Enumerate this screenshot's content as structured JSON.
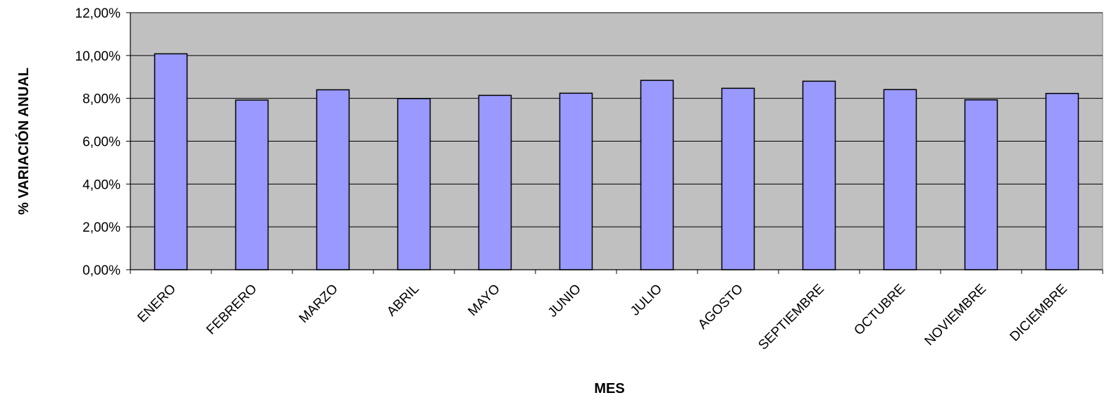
{
  "chart_data": {
    "type": "bar",
    "title": "",
    "xlabel": "MES",
    "ylabel": "% VARIACIÓN ANUAL",
    "categories": [
      "ENERO",
      "FEBRERO",
      "MARZO",
      "ABRIL",
      "MAYO",
      "JUNIO",
      "JULIO",
      "AGOSTO",
      "SEPTIEMBRE",
      "OCTUBRE",
      "NOVIEMBRE",
      "DICIEMBRE"
    ],
    "values": [
      10.08,
      7.92,
      8.4,
      7.99,
      8.14,
      8.24,
      8.84,
      8.47,
      8.8,
      8.41,
      7.93,
      8.23
    ],
    "ylim": [
      0,
      12
    ],
    "yticks": [
      0,
      2,
      4,
      6,
      8,
      10,
      12
    ],
    "ytick_labels": [
      "0,00%",
      "2,00%",
      "4,00%",
      "6,00%",
      "8,00%",
      "10,00%",
      "12,00%"
    ],
    "grid": true,
    "legend": "none",
    "colors": {
      "bar_fill": "#9999FF",
      "bar_stroke": "#000000",
      "plot_background": "#C0C0C0",
      "gridline": "#000000"
    }
  }
}
